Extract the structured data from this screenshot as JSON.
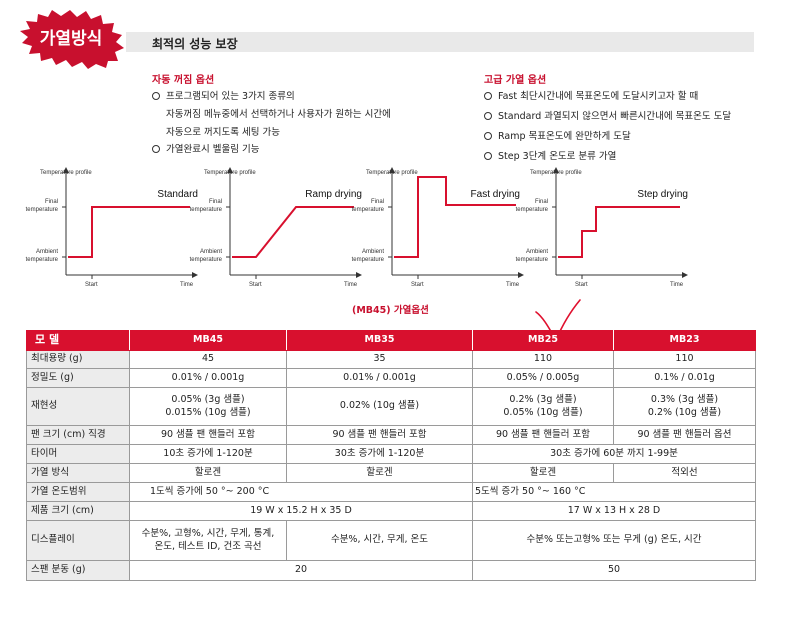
{
  "header": {
    "badge": "가열방식",
    "title": "최적의 성능 보장"
  },
  "auto_off": {
    "title": "자동 꺼짐 옵션",
    "lines": [
      "프로그램되어 있는 3가지 종류의",
      "자동꺼짐 메뉴중에서 선택하거나 사용자가 원하는 시간에",
      "자동으로 꺼지도록 세팅 가능",
      "가열완료시 벨울림 기능"
    ]
  },
  "heating": {
    "title": "고급 가열 옵션",
    "lines": [
      "Fast 최단시간내에 목표온도에 도달시키고자 할 때",
      "Standard 과열되지 않으면서 빠른시간내에 목표온도 도달",
      "Ramp 목표온도에 완만하게 도달",
      "Step 3단계 온도로 분류 가열"
    ]
  },
  "chart_labels": {
    "profile": "Temperature profile",
    "final": "Final",
    "final2": "temperature",
    "ambient": "Ambient",
    "ambient2": "temperature",
    "start": "Start",
    "time": "Time"
  },
  "chart_data": [
    {
      "type": "line",
      "title": "Standard",
      "profile": "immediate rise to final temperature at start"
    },
    {
      "type": "line",
      "title": "Ramp drying",
      "profile": "linear ramp from ambient to final temperature"
    },
    {
      "type": "line",
      "title": "Fast drying",
      "profile": "overshoot above final then settle at final"
    },
    {
      "type": "line",
      "title": "Step drying",
      "profile": "three step increase to final temperature"
    }
  ],
  "mb45_caption": "(MB45) 가열옵션",
  "table": {
    "headers": [
      "모 델",
      "MB45",
      "MB35",
      "MB25",
      "MB23"
    ],
    "rows": {
      "capacity": {
        "label": "최대용량 (g)",
        "mb45": "45",
        "mb35": "35",
        "mb25": "110",
        "mb23": "110"
      },
      "precision": {
        "label": "정밀도 (g)",
        "mb45": "0.01% / 0.001g",
        "mb35": "0.01% / 0.001g",
        "mb25": "0.05% / 0.005g",
        "mb23": "0.1% / 0.01g"
      },
      "repeat": {
        "label": "재현성",
        "mb45_1": "0.05% (3g 샘플)",
        "mb45_2": "0.015% (10g 샘플)",
        "mb35": "0.02% (10g 샘플)",
        "mb25_1": "0.2% (3g 샘플)",
        "mb25_2": "0.05% (10g 샘플)",
        "mb23_1": "0.3% (3g 샘플)",
        "mb23_2": "0.2% (10g 샘플)"
      },
      "pan": {
        "label": "팬 크기 (cm) 직경",
        "mb45": "90 샘플 팬 핸들러 포함",
        "mb35": "90 샘플 팬 핸들러 포함",
        "mb25": "90 샘플 팬 핸들러 포함",
        "mb23": "90 샘플 팬 핸들러 옵션"
      },
      "timer": {
        "label": "타이머",
        "mb45": "10초 증가에 1-120분",
        "mb35": "30초 증가에 1-120분",
        "mb25_23": "30초 증가에 60분 까지 1-99분"
      },
      "heat": {
        "label": "가열 방식",
        "mb45": "할로겐",
        "mb35": "할로겐",
        "mb25": "할로겐",
        "mb23": "적외선"
      },
      "temp": {
        "label": "가열 온도범위",
        "mb45_35": "1도씩 증가에 50 °~ 200 °C",
        "mb25_23": "5도씩 증가 50 °~ 160 °C"
      },
      "size": {
        "label": "제품 크기 (cm)",
        "mb45_35": "19 W x 15.2 H x 35 D",
        "mb25_23": "17 W x 13 H x 28 D"
      },
      "display": {
        "label": "디스플레이",
        "mb45_1": "수분%, 고형%, 시간, 무게, 통계,",
        "mb45_2": "온도, 테스트 ID, 건조 곡선",
        "mb35": "수분%, 시간, 무게, 온도",
        "mb25_23": "수분% 또는고형% 또는 무게 (g) 온도, 시간"
      },
      "resolution": {
        "label": "스팬 분동 (g)",
        "mb45_35": "20",
        "mb25_23": "50"
      }
    }
  },
  "colors": {
    "accent": "#d8102e",
    "annotation": "#e0102e"
  }
}
